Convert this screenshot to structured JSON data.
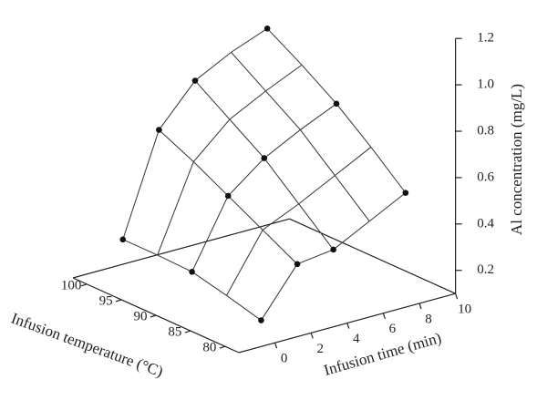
{
  "chart_data": {
    "type": "surface3d",
    "xlabel": "Infusion time (min)",
    "ylabel": "Infusion temperature (°C)",
    "zlabel": "Al concentration (mg/L)",
    "xlim": [
      -2,
      10
    ],
    "xticks": [
      0,
      2,
      4,
      6,
      8,
      10
    ],
    "ylim": [
      78,
      102
    ],
    "yticks": [
      80,
      85,
      90,
      95,
      100
    ],
    "zlim": [
      0.1,
      1.2
    ],
    "zticks": [
      0.2,
      0.4,
      0.6,
      0.8,
      {
        "value": 1,
        "label": "1.0"
      },
      1.2
    ],
    "surface": {
      "x": [
        0,
        2,
        4,
        6,
        8
      ],
      "y": [
        80,
        85,
        90,
        95,
        100
      ],
      "z": [
        [
          0.17,
          0.37,
          0.39,
          0.47,
          0.55
        ],
        [
          0.21,
          0.45,
          0.52,
          0.6,
          0.68
        ],
        [
          0.245,
          0.53,
          0.65,
          0.73,
          0.8
        ],
        [
          0.25,
          0.61,
          0.75,
          0.83,
          0.9
        ],
        [
          0.25,
          0.68,
          0.85,
          0.93,
          0.99
        ]
      ],
      "color": "#333333"
    },
    "points": {
      "x": [
        0,
        0,
        0,
        2,
        2,
        2,
        4,
        4,
        4,
        8,
        8,
        8
      ],
      "y": [
        80,
        90,
        100,
        80,
        90,
        100,
        80,
        90,
        100,
        80,
        90,
        100
      ],
      "z": [
        0.17,
        0.245,
        0.25,
        0.37,
        0.53,
        0.68,
        0.39,
        0.65,
        0.85,
        0.55,
        0.8,
        0.99
      ],
      "color": "#111111"
    }
  }
}
